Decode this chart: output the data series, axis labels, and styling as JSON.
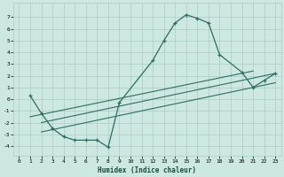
{
  "title": "",
  "xlabel": "Humidex (Indice chaleur)",
  "bg_color": "#cce8e0",
  "grid_color": "#aaccc4",
  "line_color": "#2e6e62",
  "xlim": [
    -0.5,
    23.5
  ],
  "ylim": [
    -4.8,
    8.2
  ],
  "yticks": [
    -4,
    -3,
    -2,
    -1,
    0,
    1,
    2,
    3,
    4,
    5,
    6,
    7
  ],
  "xticks": [
    0,
    1,
    2,
    3,
    4,
    5,
    6,
    7,
    8,
    9,
    10,
    11,
    12,
    13,
    14,
    15,
    16,
    17,
    18,
    19,
    20,
    21,
    22,
    23
  ],
  "curve1_x": [
    1,
    2,
    3,
    4,
    5,
    6,
    7,
    8,
    9,
    12,
    13,
    14,
    15,
    16,
    17,
    18,
    20,
    21,
    22,
    23
  ],
  "curve1_y": [
    0.3,
    -1.2,
    -2.5,
    -3.2,
    -3.5,
    -3.5,
    -3.5,
    -4.1,
    -0.3,
    3.3,
    5.0,
    6.5,
    7.2,
    6.9,
    6.5,
    3.8,
    2.3,
    1.0,
    1.6,
    2.2
  ],
  "line1_x": [
    2,
    23
  ],
  "line1_y": [
    -2.0,
    2.2
  ],
  "line2_x": [
    2,
    23
  ],
  "line2_y": [
    -2.8,
    1.4
  ],
  "line3_x": [
    1,
    21
  ],
  "line3_y": [
    -1.5,
    2.4
  ]
}
